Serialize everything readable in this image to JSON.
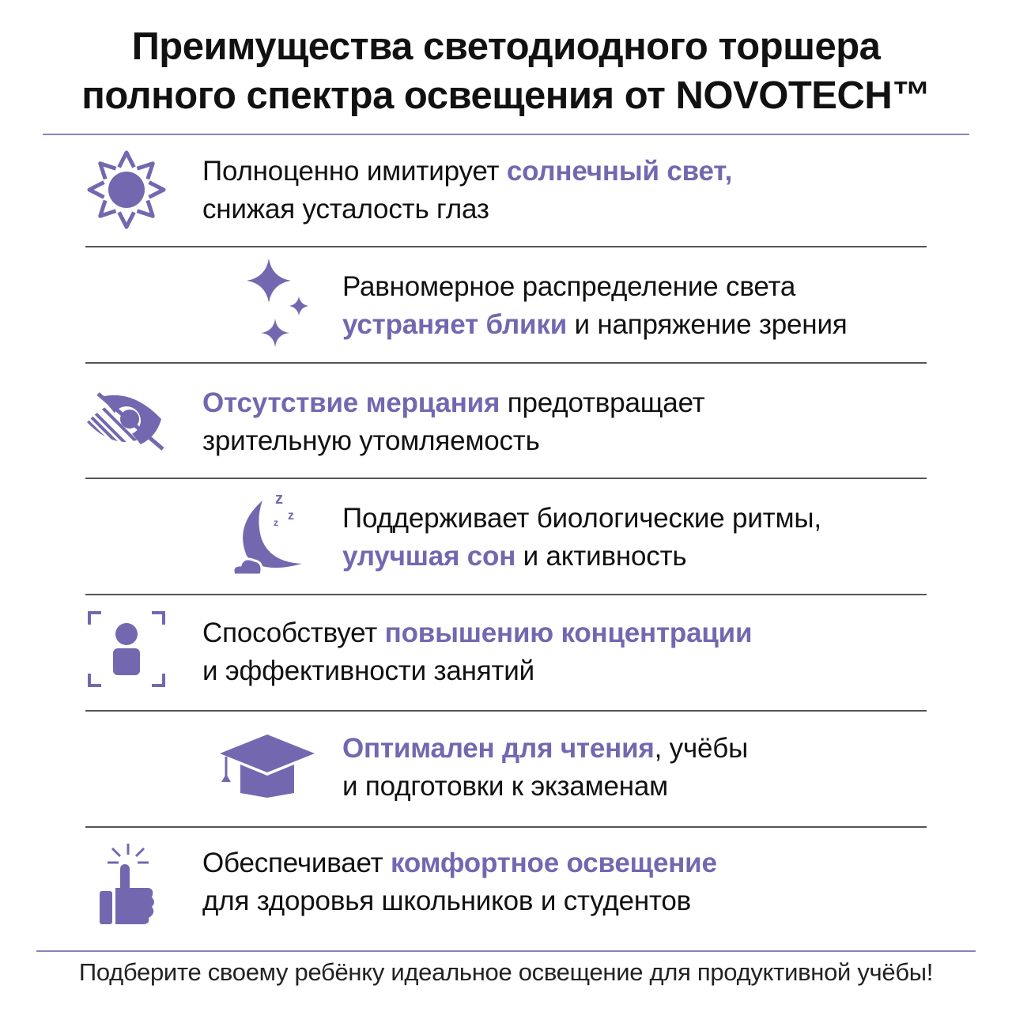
{
  "title": {
    "line1": "Преимущества светодиодного торшера",
    "line2": "полного спектра освещения от NOVOTECH™"
  },
  "colors": {
    "accent": "#7368b0",
    "divider": "#555555",
    "header_rule": "#8a82b8"
  },
  "rows": [
    {
      "icon": "sun-icon",
      "lines": [
        [
          {
            "t": "Полноценно имитирует "
          },
          {
            "t": "солнечный свет,",
            "a": true
          }
        ],
        [
          {
            "t": "снижая усталость глаз"
          }
        ]
      ]
    },
    {
      "icon": "sparkles-icon",
      "lines": [
        [
          {
            "t": "Равномерное распределение света"
          }
        ],
        [
          {
            "t": "устраняет блики",
            "a": true
          },
          {
            "t": " и напряжение зрения"
          }
        ]
      ]
    },
    {
      "icon": "eye-no-flicker-icon",
      "lines": [
        [
          {
            "t": "Отсутствие мерцания",
            "a": true
          },
          {
            "t": " предотвращает"
          }
        ],
        [
          {
            "t": "зрительную утомляемость"
          }
        ]
      ]
    },
    {
      "icon": "moon-sleep-icon",
      "lines": [
        [
          {
            "t": "Поддерживает биологические ритмы,"
          }
        ],
        [
          {
            "t": "улучшая сон",
            "a": true
          },
          {
            "t": " и активность"
          }
        ]
      ]
    },
    {
      "icon": "focus-person-icon",
      "lines": [
        [
          {
            "t": "Способствует "
          },
          {
            "t": "повышению концентрации",
            "a": true
          }
        ],
        [
          {
            "t": "и эффективности занятий"
          }
        ]
      ]
    },
    {
      "icon": "graduation-cap-icon",
      "lines": [
        [
          {
            "t": "Оптимален для чтения",
            "a": true
          },
          {
            "t": ", учёбы"
          }
        ],
        [
          {
            "t": "и подготовки к экзаменам"
          }
        ]
      ]
    },
    {
      "icon": "thumbs-up-icon",
      "lines": [
        [
          {
            "t": "Обеспечивает "
          },
          {
            "t": "комфортное освещение",
            "a": true
          }
        ],
        [
          {
            "t": "для здоровья школьников и студентов"
          }
        ]
      ]
    }
  ],
  "footer": "Подберите своему ребёнку идеальное освещение для продуктивной учёбы!"
}
